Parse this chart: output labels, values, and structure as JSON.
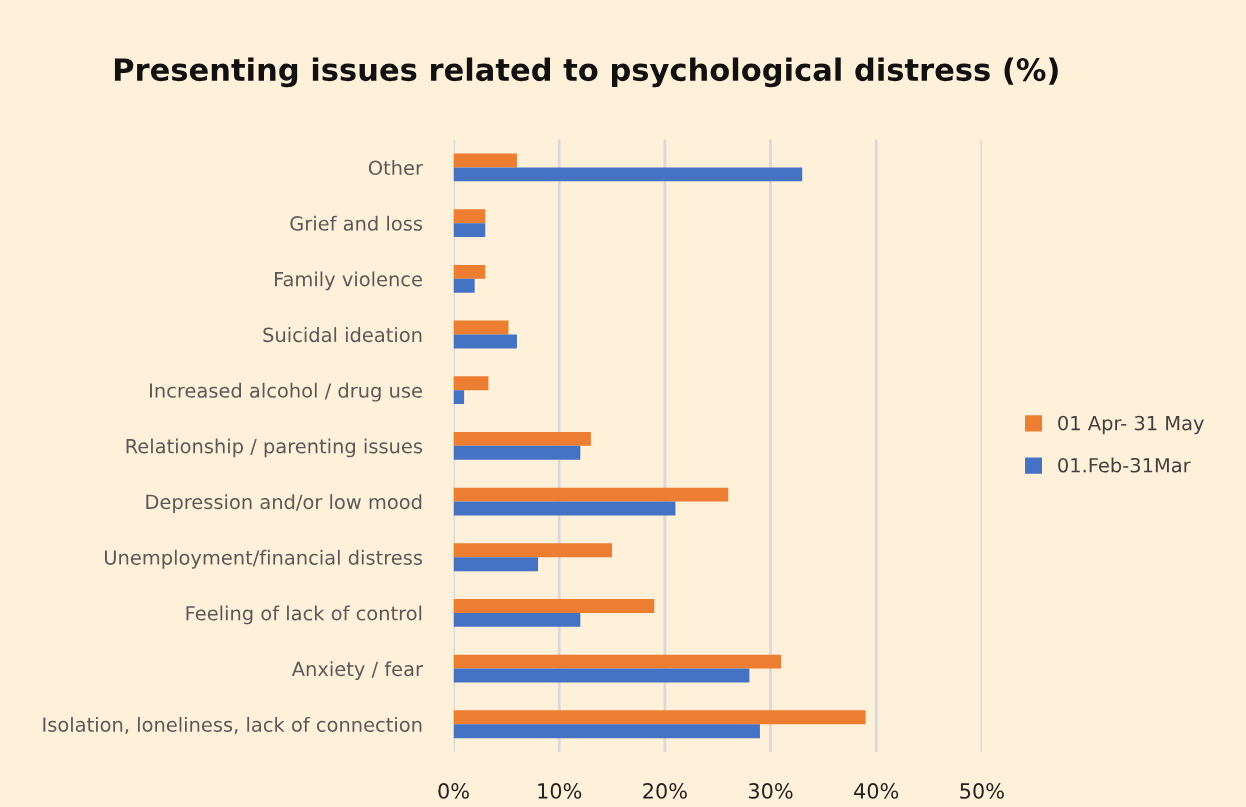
{
  "chart_data": {
    "type": "bar",
    "orientation": "horizontal",
    "title": "Presenting issues related to psychological distress (%)",
    "categories": [
      "Other",
      "Grief and loss",
      "Family violence",
      "Suicidal ideation",
      "Increased alcohol / drug use",
      "Relationship / parenting issues",
      "Depression and/or low mood",
      "Unemployment/financial distress",
      "Feeling of lack of control",
      "Anxiety / fear",
      "Isolation, loneliness, lack of connection"
    ],
    "series": [
      {
        "name": "01 Apr- 31 May",
        "color": "#ed7d31",
        "values": [
          6.0,
          3.0,
          3.0,
          5.2,
          3.3,
          13.0,
          26.0,
          15.0,
          19.0,
          31.0,
          39.0
        ]
      },
      {
        "name": "01.Feb-31Mar",
        "color": "#4472c4",
        "values": [
          33.0,
          3.0,
          2.0,
          6.0,
          1.0,
          12.0,
          21.0,
          8.0,
          12.0,
          28.0,
          29.0
        ]
      }
    ],
    "xlim": [
      0,
      50
    ],
    "xticks": [
      {
        "value": 0,
        "label": "0%"
      },
      {
        "value": 10,
        "label": "10%"
      },
      {
        "value": 20,
        "label": "20%"
      },
      {
        "value": 30,
        "label": "30%"
      },
      {
        "value": 40,
        "label": "40%"
      },
      {
        "value": 50,
        "label": "50%"
      }
    ],
    "grid": "x",
    "legend": "right"
  }
}
